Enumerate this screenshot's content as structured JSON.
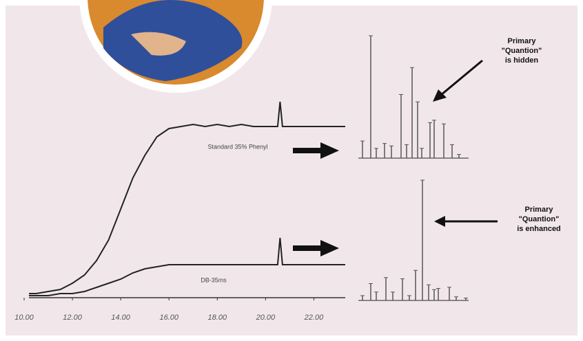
{
  "chart_data": [
    {
      "type": "line",
      "x": [
        10.2,
        10.5,
        11,
        11.5,
        12,
        12.5,
        13,
        13.5,
        14,
        14.5,
        15,
        15.5,
        16,
        16.5,
        17,
        17.5,
        18,
        18.5,
        19,
        19.5,
        20,
        20.5,
        20.6,
        20.7,
        21,
        21.5,
        22,
        22.5,
        23,
        23.3
      ],
      "series": [
        {
          "name": "Standard 35% Phenyl",
          "color": "#222222",
          "values": [
            1,
            1,
            2,
            3,
            6,
            10,
            17,
            27,
            42,
            57,
            68,
            77,
            81,
            82,
            83,
            82,
            83,
            82,
            83,
            82,
            82,
            82,
            94,
            82,
            82,
            82,
            82,
            82,
            82,
            82
          ]
        },
        {
          "name": "DB-35ms",
          "color": "#222222",
          "values": [
            0,
            0,
            0,
            1,
            1,
            2,
            4,
            6,
            8,
            11,
            13,
            14,
            15,
            15,
            15,
            15,
            15,
            15,
            15,
            15,
            15,
            15,
            28,
            15,
            15,
            15,
            15,
            15,
            15,
            15
          ]
        }
      ],
      "xlim": [
        10,
        23.3
      ],
      "xticks": [
        {
          "value": 10,
          "label": "10.00"
        },
        {
          "value": 12,
          "label": "12.00"
        },
        {
          "value": 14,
          "label": "14.00"
        },
        {
          "value": 16,
          "label": "16.00"
        },
        {
          "value": 18,
          "label": "18.00"
        },
        {
          "value": 20,
          "label": "20.00"
        },
        {
          "value": 22,
          "label": "22.00"
        }
      ],
      "ylim": [
        0,
        100
      ]
    },
    {
      "type": "bar",
      "x": [
        6,
        18,
        26,
        38,
        48,
        62,
        70,
        78,
        86,
        92,
        104,
        110,
        124,
        136,
        146
      ],
      "values": [
        14,
        100,
        8,
        12,
        10,
        52,
        11,
        74,
        46,
        8,
        29,
        31,
        28,
        11,
        3
      ],
      "color": "#555555",
      "xlim": [
        0,
        160
      ],
      "ylim": [
        0,
        100
      ],
      "annotation": [
        "Primary",
        "\"Quantion\"",
        "is hidden"
      ]
    },
    {
      "type": "bar",
      "x": [
        6,
        18,
        26,
        40,
        50,
        64,
        74,
        83,
        93,
        102,
        110,
        116,
        132,
        142,
        156
      ],
      "values": [
        4,
        14,
        7,
        19,
        7,
        18,
        4,
        25,
        100,
        13,
        9,
        10,
        11,
        3,
        2
      ],
      "color": "#555555",
      "xlim": [
        0,
        160
      ],
      "ylim": [
        0,
        100
      ],
      "annotation": [
        "Primary",
        "\"Quantion\"",
        "is enhanced"
      ]
    }
  ]
}
